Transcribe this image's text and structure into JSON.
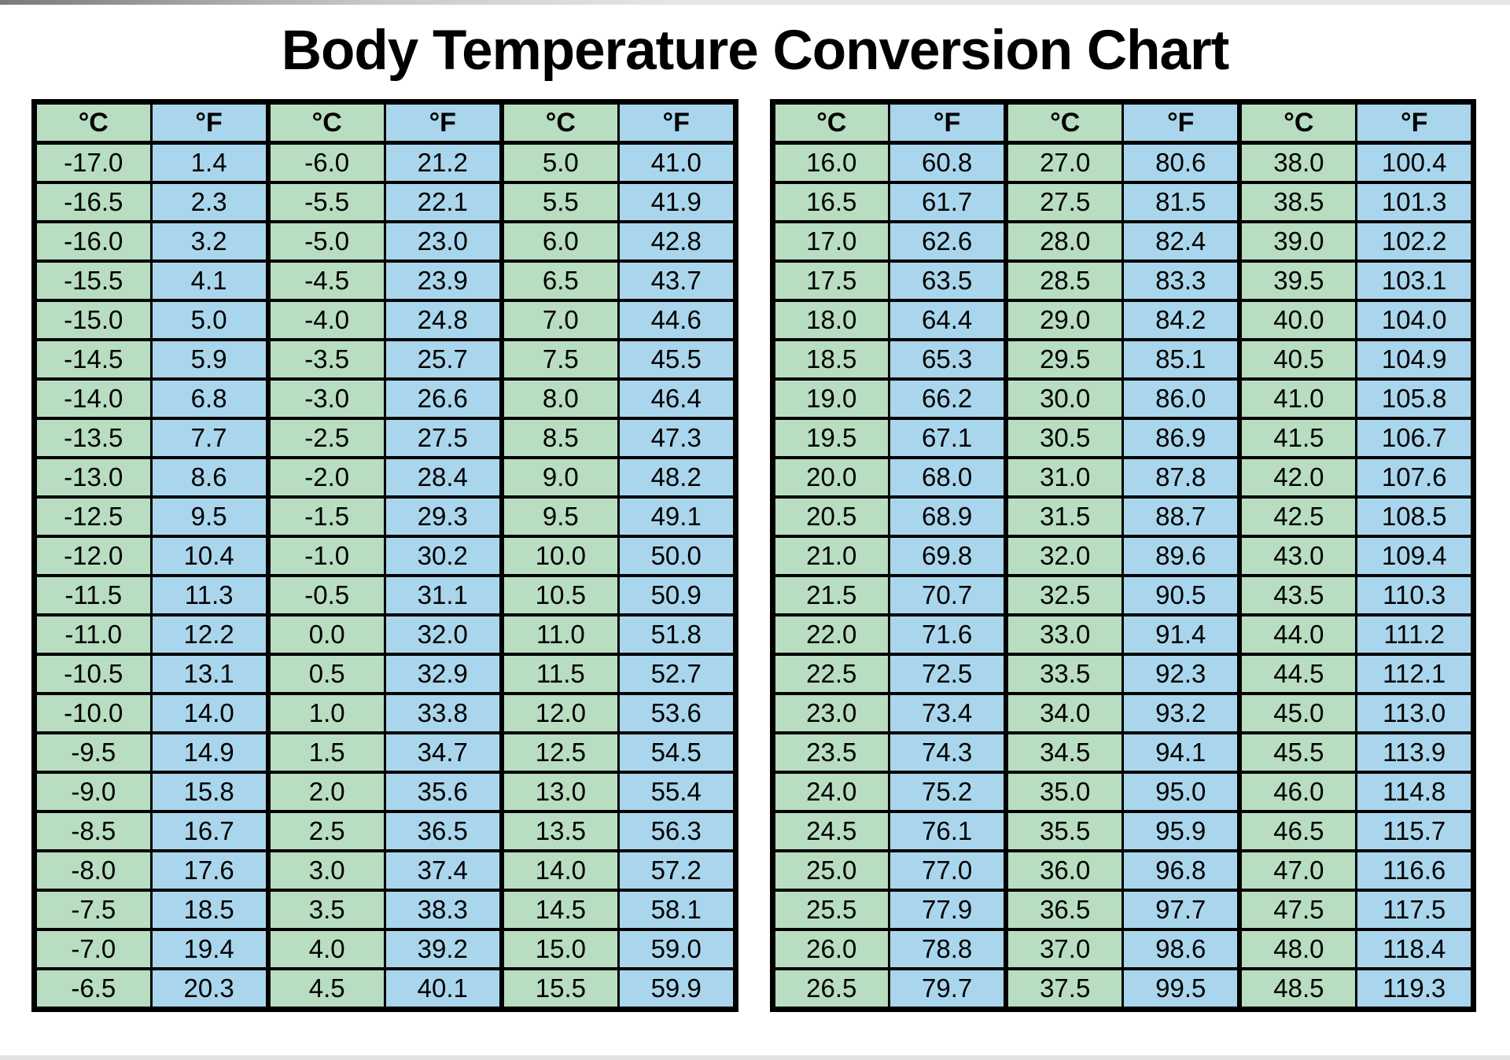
{
  "chart_data": {
    "type": "table",
    "title": "Body Temperature Conversion Chart",
    "legend": {
      "celsius_symbol": "°C",
      "fahrenheit_symbol": "°F"
    },
    "colors": {
      "celsius_bg": "#b8ddc1",
      "fahrenheit_bg": "#a9d6ec",
      "border": "#000000",
      "text": "#000000",
      "background": "#ffffff"
    },
    "tables": [
      {
        "name": "left",
        "headers": [
          "°C",
          "°F",
          "°C",
          "°F",
          "°C",
          "°F"
        ],
        "rows": [
          [
            "-17.0",
            "1.4",
            "-6.0",
            "21.2",
            "5.0",
            "41.0"
          ],
          [
            "-16.5",
            "2.3",
            "-5.5",
            "22.1",
            "5.5",
            "41.9"
          ],
          [
            "-16.0",
            "3.2",
            "-5.0",
            "23.0",
            "6.0",
            "42.8"
          ],
          [
            "-15.5",
            "4.1",
            "-4.5",
            "23.9",
            "6.5",
            "43.7"
          ],
          [
            "-15.0",
            "5.0",
            "-4.0",
            "24.8",
            "7.0",
            "44.6"
          ],
          [
            "-14.5",
            "5.9",
            "-3.5",
            "25.7",
            "7.5",
            "45.5"
          ],
          [
            "-14.0",
            "6.8",
            "-3.0",
            "26.6",
            "8.0",
            "46.4"
          ],
          [
            "-13.5",
            "7.7",
            "-2.5",
            "27.5",
            "8.5",
            "47.3"
          ],
          [
            "-13.0",
            "8.6",
            "-2.0",
            "28.4",
            "9.0",
            "48.2"
          ],
          [
            "-12.5",
            "9.5",
            "-1.5",
            "29.3",
            "9.5",
            "49.1"
          ],
          [
            "-12.0",
            "10.4",
            "-1.0",
            "30.2",
            "10.0",
            "50.0"
          ],
          [
            "-11.5",
            "11.3",
            "-0.5",
            "31.1",
            "10.5",
            "50.9"
          ],
          [
            "-11.0",
            "12.2",
            "0.0",
            "32.0",
            "11.0",
            "51.8"
          ],
          [
            "-10.5",
            "13.1",
            "0.5",
            "32.9",
            "11.5",
            "52.7"
          ],
          [
            "-10.0",
            "14.0",
            "1.0",
            "33.8",
            "12.0",
            "53.6"
          ],
          [
            "-9.5",
            "14.9",
            "1.5",
            "34.7",
            "12.5",
            "54.5"
          ],
          [
            "-9.0",
            "15.8",
            "2.0",
            "35.6",
            "13.0",
            "55.4"
          ],
          [
            "-8.5",
            "16.7",
            "2.5",
            "36.5",
            "13.5",
            "56.3"
          ],
          [
            "-8.0",
            "17.6",
            "3.0",
            "37.4",
            "14.0",
            "57.2"
          ],
          [
            "-7.5",
            "18.5",
            "3.5",
            "38.3",
            "14.5",
            "58.1"
          ],
          [
            "-7.0",
            "19.4",
            "4.0",
            "39.2",
            "15.0",
            "59.0"
          ],
          [
            "-6.5",
            "20.3",
            "4.5",
            "40.1",
            "15.5",
            "59.9"
          ]
        ]
      },
      {
        "name": "right",
        "headers": [
          "°C",
          "°F",
          "°C",
          "°F",
          "°C",
          "°F"
        ],
        "rows": [
          [
            "16.0",
            "60.8",
            "27.0",
            "80.6",
            "38.0",
            "100.4"
          ],
          [
            "16.5",
            "61.7",
            "27.5",
            "81.5",
            "38.5",
            "101.3"
          ],
          [
            "17.0",
            "62.6",
            "28.0",
            "82.4",
            "39.0",
            "102.2"
          ],
          [
            "17.5",
            "63.5",
            "28.5",
            "83.3",
            "39.5",
            "103.1"
          ],
          [
            "18.0",
            "64.4",
            "29.0",
            "84.2",
            "40.0",
            "104.0"
          ],
          [
            "18.5",
            "65.3",
            "29.5",
            "85.1",
            "40.5",
            "104.9"
          ],
          [
            "19.0",
            "66.2",
            "30.0",
            "86.0",
            "41.0",
            "105.8"
          ],
          [
            "19.5",
            "67.1",
            "30.5",
            "86.9",
            "41.5",
            "106.7"
          ],
          [
            "20.0",
            "68.0",
            "31.0",
            "87.8",
            "42.0",
            "107.6"
          ],
          [
            "20.5",
            "68.9",
            "31.5",
            "88.7",
            "42.5",
            "108.5"
          ],
          [
            "21.0",
            "69.8",
            "32.0",
            "89.6",
            "43.0",
            "109.4"
          ],
          [
            "21.5",
            "70.7",
            "32.5",
            "90.5",
            "43.5",
            "110.3"
          ],
          [
            "22.0",
            "71.6",
            "33.0",
            "91.4",
            "44.0",
            "111.2"
          ],
          [
            "22.5",
            "72.5",
            "33.5",
            "92.3",
            "44.5",
            "112.1"
          ],
          [
            "23.0",
            "73.4",
            "34.0",
            "93.2",
            "45.0",
            "113.0"
          ],
          [
            "23.5",
            "74.3",
            "34.5",
            "94.1",
            "45.5",
            "113.9"
          ],
          [
            "24.0",
            "75.2",
            "35.0",
            "95.0",
            "46.0",
            "114.8"
          ],
          [
            "24.5",
            "76.1",
            "35.5",
            "95.9",
            "46.5",
            "115.7"
          ],
          [
            "25.0",
            "77.0",
            "36.0",
            "96.8",
            "47.0",
            "116.6"
          ],
          [
            "25.5",
            "77.9",
            "36.5",
            "97.7",
            "47.5",
            "117.5"
          ],
          [
            "26.0",
            "78.8",
            "37.0",
            "98.6",
            "48.0",
            "118.4"
          ],
          [
            "26.5",
            "79.7",
            "37.5",
            "99.5",
            "48.5",
            "119.3"
          ]
        ]
      }
    ]
  }
}
